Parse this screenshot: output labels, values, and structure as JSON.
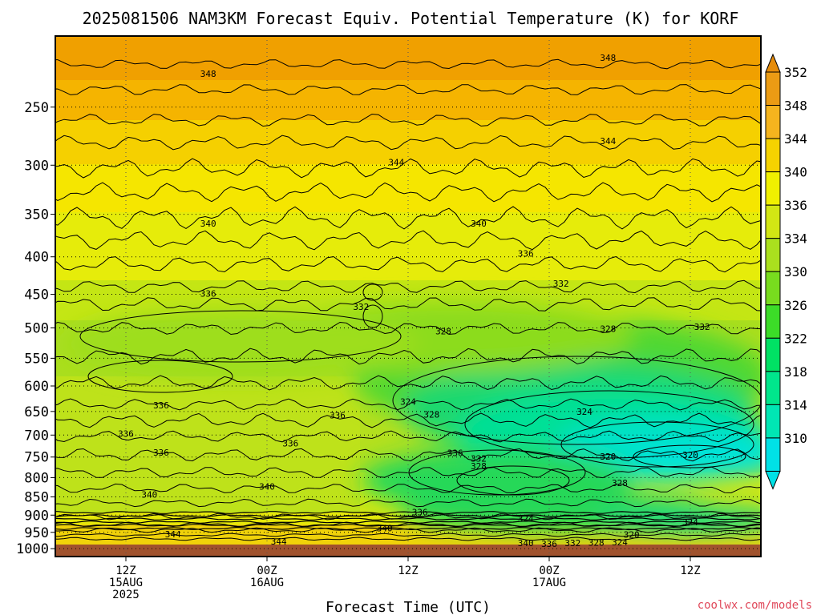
{
  "title": "2025081506 NAM3KM Forecast Equiv. Potential Temperature (K) for KORF",
  "xlabel": "Forecast Time (UTC)",
  "credit": "coolwx.com/models",
  "chart_data": {
    "type": "heatmap",
    "title": "2025081506 NAM3KM Forecast Equiv. Potential Temperature (K) for KORF",
    "xlabel": "Forecast Time (UTC)",
    "ylabel": "",
    "x_ticks": [
      {
        "x": 6,
        "label": [
          "12Z",
          "15AUG",
          "2025"
        ]
      },
      {
        "x": 18,
        "label": [
          "00Z",
          "16AUG"
        ]
      },
      {
        "x": 30,
        "label": [
          "12Z"
        ]
      },
      {
        "x": 42,
        "label": [
          "00Z",
          "17AUG"
        ]
      },
      {
        "x": 54,
        "label": [
          "12Z"
        ]
      }
    ],
    "xlim": [
      0,
      60
    ],
    "y_ticks": [
      250,
      300,
      350,
      400,
      450,
      500,
      550,
      600,
      650,
      700,
      750,
      800,
      850,
      900,
      950,
      1000
    ],
    "ylim": [
      1025,
      200
    ],
    "yscale": "log",
    "colorbar": {
      "levels": [
        310,
        314,
        318,
        322,
        326,
        330,
        334,
        336,
        340,
        344,
        348,
        352
      ],
      "colors": [
        "#00e1e6",
        "#00e6b4",
        "#00e68c",
        "#00e164",
        "#3cdc28",
        "#78dc1e",
        "#aae01e",
        "#d2e614",
        "#f0f000",
        "#f5d200",
        "#f5b41e",
        "#eb9b14",
        "#e68c0a"
      ]
    },
    "contour_labels": [
      {
        "x": 13,
        "p": 225,
        "label": "348"
      },
      {
        "x": 47,
        "p": 214,
        "label": "348"
      },
      {
        "x": 47,
        "p": 278,
        "label": "344"
      },
      {
        "x": 29,
        "p": 297,
        "label": "344"
      },
      {
        "x": 13,
        "p": 360,
        "label": "340"
      },
      {
        "x": 36,
        "p": 360,
        "label": "340"
      },
      {
        "x": 40,
        "p": 396,
        "label": "336"
      },
      {
        "x": 43,
        "p": 435,
        "label": "332"
      },
      {
        "x": 13,
        "p": 449,
        "label": "336"
      },
      {
        "x": 26,
        "p": 468,
        "label": "332"
      },
      {
        "x": 33,
        "p": 505,
        "label": "328"
      },
      {
        "x": 47,
        "p": 501,
        "label": "328"
      },
      {
        "x": 55,
        "p": 498,
        "label": "332"
      },
      {
        "x": 30,
        "p": 630,
        "label": "324"
      },
      {
        "x": 45,
        "p": 650,
        "label": "324"
      },
      {
        "x": 32,
        "p": 656,
        "label": "328"
      },
      {
        "x": 24,
        "p": 658,
        "label": "336"
      },
      {
        "x": 9,
        "p": 637,
        "label": "336"
      },
      {
        "x": 6,
        "p": 697,
        "label": "336"
      },
      {
        "x": 9,
        "p": 739,
        "label": "336"
      },
      {
        "x": 20,
        "p": 718,
        "label": "336"
      },
      {
        "x": 34,
        "p": 740,
        "label": "336"
      },
      {
        "x": 36,
        "p": 753,
        "label": "332"
      },
      {
        "x": 36,
        "p": 772,
        "label": "328"
      },
      {
        "x": 47,
        "p": 749,
        "label": "320"
      },
      {
        "x": 54,
        "p": 745,
        "label": "320"
      },
      {
        "x": 48,
        "p": 813,
        "label": "328"
      },
      {
        "x": 18,
        "p": 823,
        "label": "340"
      },
      {
        "x": 8,
        "p": 844,
        "label": "340"
      },
      {
        "x": 31,
        "p": 892,
        "label": "336"
      },
      {
        "x": 28,
        "p": 938,
        "label": "340"
      },
      {
        "x": 40,
        "p": 910,
        "label": "324"
      },
      {
        "x": 54,
        "p": 920,
        "label": "324"
      },
      {
        "x": 49,
        "p": 956,
        "label": "320"
      },
      {
        "x": 10,
        "p": 955,
        "label": "344"
      },
      {
        "x": 19,
        "p": 977,
        "label": "344"
      },
      {
        "x": 40,
        "p": 982,
        "label": "340"
      },
      {
        "x": 42,
        "p": 984,
        "label": "336"
      },
      {
        "x": 44,
        "p": 982,
        "label": "332"
      },
      {
        "x": 46,
        "p": 981,
        "label": "328"
      },
      {
        "x": 48,
        "p": 980,
        "label": "324"
      }
    ],
    "grid": true
  }
}
